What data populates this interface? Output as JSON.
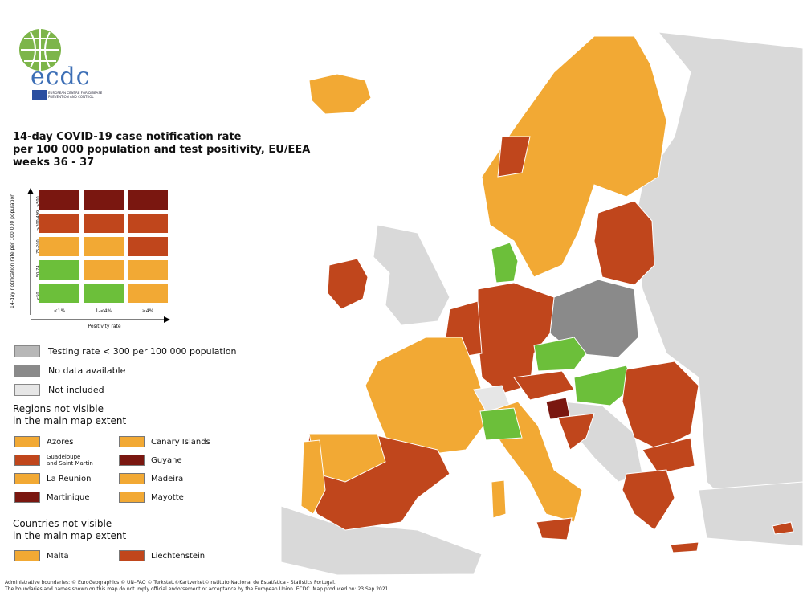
{
  "logo": {
    "name": "ecdc",
    "subtitle": "European Centre for Disease Prevention and Control"
  },
  "title": "14-day COVID-19 case notification rate\nper 100 000 population and test positivity, EU/EEA\nweeks 36 - 37",
  "colors": {
    "green": "#6cbf3a",
    "orange": "#f2a934",
    "red": "#c0461c",
    "darkred": "#7a1710",
    "grey_testing": "#b7b7b7",
    "grey_nodata": "#8a8a8a",
    "not_included": "#e6e6e6",
    "sea": "#ffffff",
    "non_eu": "#d9d9d9"
  },
  "matrix": {
    "y_axis_label": "14-day notification rate per 100 000 population",
    "row_labels": [
      ">500",
      ">200-499",
      "75-200",
      "50-74",
      "<50"
    ],
    "col_labels": [
      "<1%",
      "1-<4%",
      "≥4%"
    ],
    "x_axis_label": "Positivity rate",
    "cells": [
      [
        "darkred",
        "darkred",
        "darkred"
      ],
      [
        "red",
        "red",
        "red"
      ],
      [
        "orange",
        "orange",
        "red"
      ],
      [
        "green",
        "orange",
        "orange"
      ],
      [
        "green",
        "green",
        "orange"
      ]
    ]
  },
  "legend": [
    {
      "label": "Testing rate < 300 per 100 000 population",
      "color_key": "grey_testing"
    },
    {
      "label": "No data available",
      "color_key": "grey_nodata"
    },
    {
      "label": "Not included",
      "color_key": "not_included"
    }
  ],
  "regions_title": "Regions not visible\nin the main map extent",
  "regions": [
    {
      "label": "Azores",
      "color_key": "orange"
    },
    {
      "label": "Canary Islands",
      "color_key": "orange"
    },
    {
      "label": "Guadeloupe\nand Saint Martin",
      "color_key": "red"
    },
    {
      "label": "Guyane",
      "color_key": "darkred"
    },
    {
      "label": "La Reunion",
      "color_key": "orange"
    },
    {
      "label": "Madeira",
      "color_key": "orange"
    },
    {
      "label": "Martinique",
      "color_key": "darkred"
    },
    {
      "label": "Mayotte",
      "color_key": "orange"
    }
  ],
  "countries_title": "Countries not visible\nin the main map extent",
  "countries": [
    {
      "label": "Malta",
      "color_key": "orange"
    },
    {
      "label": "Liechtenstein",
      "color_key": "red"
    }
  ],
  "footer": {
    "line1": "Administrative boundaries: © EuroGeographics © UN–FAO © Turkstat.©Kartverket©Instituto Nacional de Estatística - Statistics Portugal.",
    "line2": "The boundaries and names shown on this map do not imply official endorsement or acceptance by the European Union. ECDC. Map produced on: 23 Sep 2021"
  }
}
